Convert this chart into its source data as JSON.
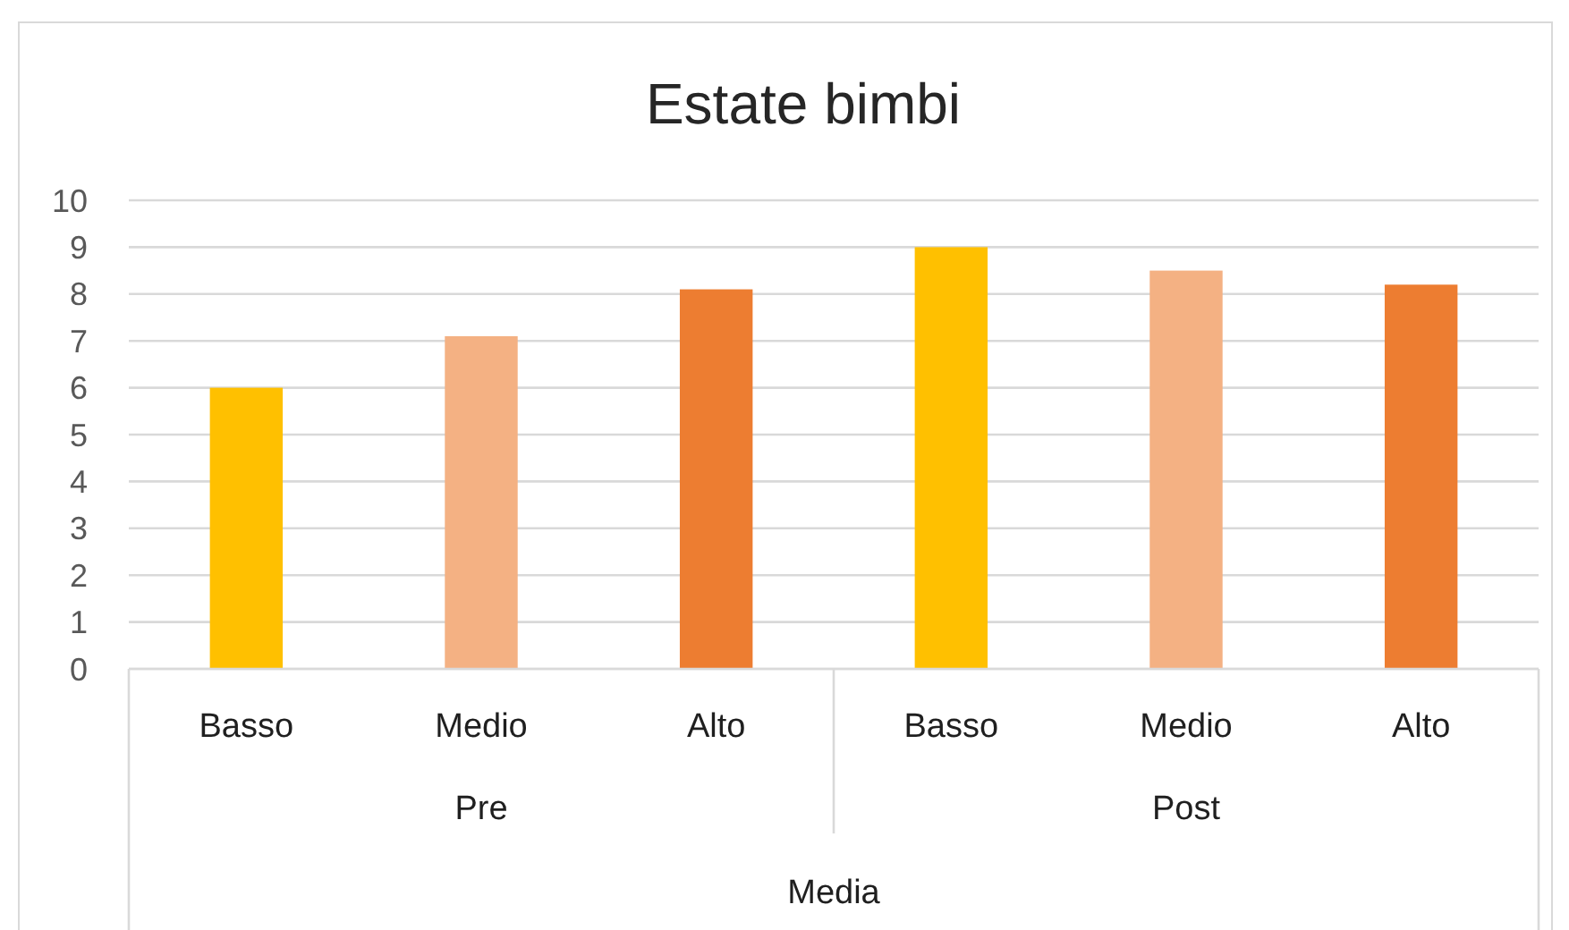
{
  "chart_data": {
    "type": "bar",
    "title": "Estate bimbi",
    "categories": [
      "Basso",
      "Medio",
      "Alto",
      "Basso",
      "Medio",
      "Alto"
    ],
    "values": [
      6,
      7.1,
      8.1,
      9,
      8.5,
      8.2
    ],
    "colors": [
      "#ffc000",
      "#f4b183",
      "#ed7d31",
      "#ffc000",
      "#f4b183",
      "#ed7d31"
    ],
    "ylim": [
      0,
      10
    ],
    "yticks": [
      0,
      1,
      2,
      3,
      4,
      5,
      6,
      7,
      8,
      9,
      10
    ],
    "grid": true,
    "xlabel": "Media",
    "annotations": [
      "Pre",
      "Post"
    ]
  }
}
